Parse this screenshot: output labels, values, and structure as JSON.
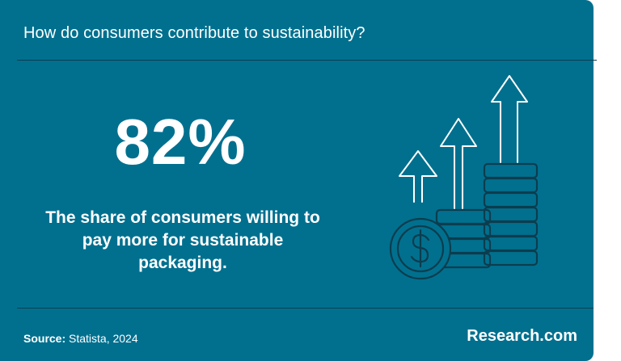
{
  "header": {
    "title": "How do consumers contribute to sustainability?"
  },
  "stat": {
    "value": "82%",
    "description": "The share of consumers willing to pay more for sustainable packaging."
  },
  "illustration": {
    "icon": "coins-growth-arrows-icon"
  },
  "footer": {
    "source_label": "Source:",
    "source_text": "Statista, 2024",
    "brand": "Research.com"
  },
  "colors": {
    "background": "#01708f",
    "text": "#ffffff",
    "line": "#0c3d4e"
  }
}
